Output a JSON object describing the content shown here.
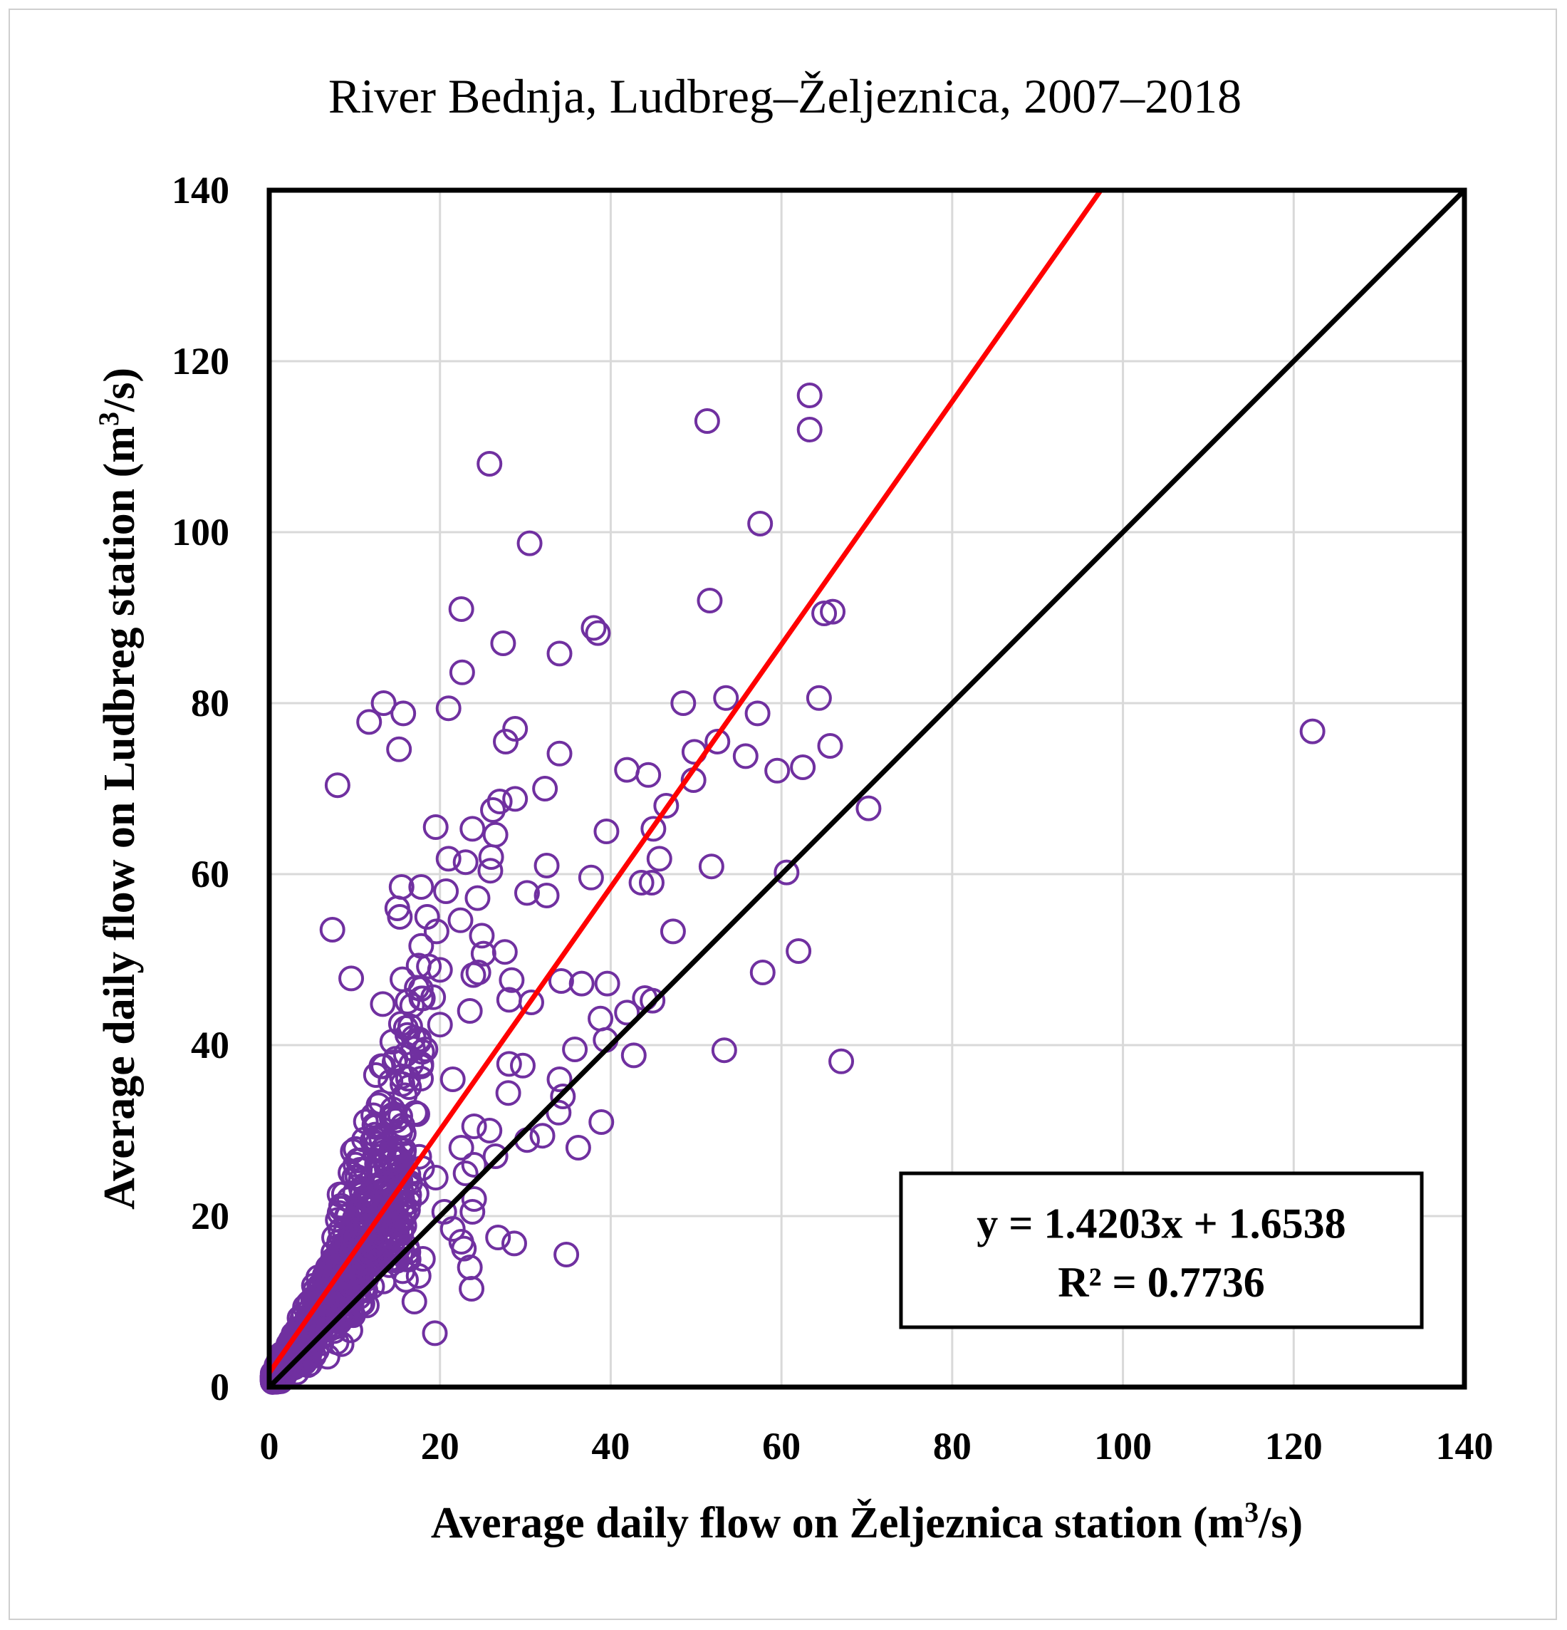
{
  "chart_data": {
    "type": "scatter",
    "title": "River Bednja, Ludbreg–Željeznica, 2007–2018",
    "xlabel": "Average daily flow on Željeznica station (m",
    "xlabel_sup": "3",
    "xlabel_tail": "/s)",
    "ylabel": "Average daily flow on Ludbreg station (m",
    "ylabel_sup": "3",
    "ylabel_tail": "/s)",
    "xlim": [
      0,
      140
    ],
    "ylim": [
      0,
      140
    ],
    "xticks": [
      "0",
      "20",
      "40",
      "60",
      "80",
      "100",
      "120",
      "140"
    ],
    "yticks": [
      "0",
      "20",
      "40",
      "60",
      "80",
      "100",
      "120",
      "140"
    ],
    "grid": true,
    "marker_color": "#7030a0",
    "trendline_color": "#ff0000",
    "identity_color": "#000000",
    "trendline": {
      "slope": 1.4203,
      "intercept": 1.6538
    },
    "identity_line": {
      "slope": 1,
      "intercept": 0
    },
    "equation": "y = 1.4203x + 1.6538",
    "r_squared": "R² = 0.7736",
    "outliers": [
      [
        63.3,
        116.0
      ],
      [
        51.3,
        113.0
      ],
      [
        63.3,
        112.0
      ],
      [
        25.8,
        108.0
      ],
      [
        57.5,
        101.0
      ],
      [
        30.5,
        98.7
      ],
      [
        51.6,
        92.0
      ],
      [
        22.5,
        91.0
      ],
      [
        65.0,
        90.5
      ],
      [
        66.0,
        90.7
      ],
      [
        38.0,
        88.8
      ],
      [
        38.5,
        88.2
      ],
      [
        27.4,
        87.0
      ],
      [
        34.0,
        85.8
      ],
      [
        22.6,
        83.6
      ],
      [
        13.4,
        80.0
      ],
      [
        53.5,
        80.6
      ],
      [
        48.5,
        80.0
      ],
      [
        64.4,
        80.6
      ],
      [
        21.0,
        79.4
      ],
      [
        15.7,
        78.8
      ],
      [
        11.7,
        77.8
      ],
      [
        57.2,
        78.8
      ],
      [
        28.8,
        77.0
      ],
      [
        27.7,
        75.5
      ],
      [
        52.5,
        75.5
      ],
      [
        15.2,
        74.6
      ],
      [
        49.8,
        74.3
      ],
      [
        34.0,
        74.1
      ],
      [
        55.8,
        73.8
      ],
      [
        65.7,
        75.0
      ],
      [
        8.0,
        70.4
      ],
      [
        59.5,
        72.1
      ],
      [
        62.5,
        72.5
      ],
      [
        41.9,
        72.2
      ],
      [
        44.4,
        71.6
      ],
      [
        49.7,
        71.0
      ],
      [
        32.3,
        70.0
      ],
      [
        28.8,
        68.8
      ],
      [
        27.0,
        68.5
      ],
      [
        26.2,
        67.5
      ],
      [
        46.5,
        68.0
      ],
      [
        70.2,
        67.7
      ],
      [
        19.5,
        65.5
      ],
      [
        23.8,
        65.3
      ],
      [
        26.5,
        64.6
      ],
      [
        39.5,
        65.0
      ],
      [
        45.0,
        65.3
      ],
      [
        21.0,
        61.8
      ],
      [
        23.0,
        61.4
      ],
      [
        26.0,
        62.0
      ],
      [
        32.5,
        61.0
      ],
      [
        45.7,
        61.8
      ],
      [
        51.8,
        60.9
      ],
      [
        60.6,
        60.2
      ],
      [
        25.9,
        60.4
      ],
      [
        37.7,
        59.6
      ],
      [
        43.6,
        59.0
      ],
      [
        44.8,
        59.0
      ],
      [
        15.5,
        58.5
      ],
      [
        17.8,
        58.5
      ],
      [
        20.7,
        58.0
      ],
      [
        24.4,
        57.2
      ],
      [
        30.2,
        57.8
      ],
      [
        32.5,
        57.5
      ],
      [
        15.0,
        56.0
      ],
      [
        15.3,
        55.0
      ],
      [
        18.5,
        55.0
      ],
      [
        22.4,
        54.6
      ],
      [
        7.4,
        53.5
      ],
      [
        19.6,
        53.3
      ],
      [
        24.9,
        52.8
      ],
      [
        47.3,
        53.3
      ],
      [
        17.8,
        51.6
      ],
      [
        25.1,
        50.7
      ],
      [
        27.6,
        50.9
      ],
      [
        62.0,
        51.0
      ],
      [
        17.5,
        49.3
      ],
      [
        18.7,
        49.2
      ],
      [
        20.0,
        48.8
      ],
      [
        23.9,
        48.2
      ],
      [
        24.5,
        48.5
      ],
      [
        9.6,
        47.8
      ],
      [
        15.6,
        47.7
      ],
      [
        28.4,
        47.6
      ],
      [
        34.2,
        47.5
      ],
      [
        36.6,
        47.2
      ],
      [
        39.6,
        47.2
      ],
      [
        57.8,
        48.5
      ],
      [
        19.2,
        45.6
      ],
      [
        28.1,
        45.3
      ],
      [
        30.7,
        45.0
      ],
      [
        44.0,
        45.5
      ],
      [
        44.9,
        45.2
      ],
      [
        13.3,
        44.8
      ],
      [
        23.5,
        44.0
      ],
      [
        41.9,
        43.8
      ],
      [
        38.8,
        43.1
      ],
      [
        16.0,
        42.0
      ],
      [
        20.0,
        42.4
      ],
      [
        39.4,
        40.6
      ],
      [
        53.3,
        39.4
      ],
      [
        35.8,
        39.5
      ],
      [
        18.3,
        39.5
      ],
      [
        42.7,
        38.8
      ],
      [
        67.0,
        38.1
      ],
      [
        28.1,
        37.8
      ],
      [
        29.7,
        37.6
      ],
      [
        34.0,
        36.0
      ],
      [
        12.5,
        36.5
      ],
      [
        21.5,
        36.0
      ],
      [
        34.4,
        34.0
      ],
      [
        28.0,
        34.4
      ],
      [
        33.9,
        32.1
      ],
      [
        38.9,
        31.0
      ],
      [
        24.0,
        30.5
      ],
      [
        25.8,
        30.0
      ],
      [
        30.2,
        28.9
      ],
      [
        32.0,
        29.4
      ],
      [
        36.2,
        28.0
      ],
      [
        22.5,
        28.0
      ],
      [
        24.0,
        26.0
      ],
      [
        26.5,
        27.0
      ],
      [
        23.0,
        25.0
      ],
      [
        19.5,
        24.5
      ],
      [
        24.0,
        22.0
      ],
      [
        23.8,
        20.5
      ],
      [
        20.5,
        20.5
      ],
      [
        21.5,
        18.5
      ],
      [
        22.5,
        17.0
      ],
      [
        26.8,
        17.5
      ],
      [
        28.7,
        16.8
      ],
      [
        22.8,
        16.2
      ],
      [
        34.8,
        15.5
      ],
      [
        23.5,
        14.0
      ],
      [
        23.7,
        11.5
      ],
      [
        19.4,
        6.3
      ],
      [
        17.0,
        10.0
      ],
      [
        17.5,
        13.0
      ],
      [
        18.0,
        15.0
      ],
      [
        122.2,
        76.7
      ]
    ],
    "regression_box": {
      "x_range": [
        74,
        135
      ],
      "y_range": [
        7,
        25
      ]
    }
  }
}
